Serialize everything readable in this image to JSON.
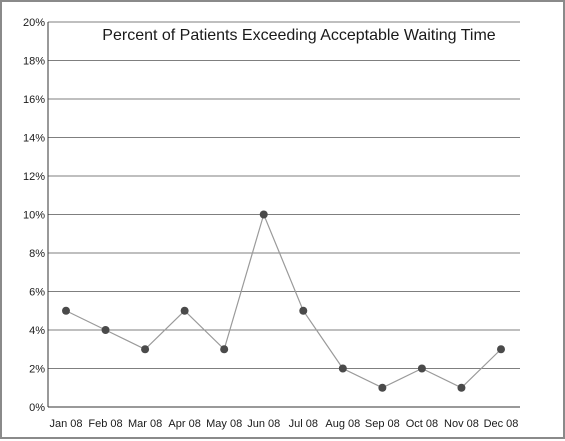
{
  "chart_data": {
    "type": "line",
    "title": "Percent of Patients Exceeding Acceptable Waiting Time",
    "xlabel": "",
    "ylabel": "",
    "categories": [
      "Jan 08",
      "Feb 08",
      "Mar 08",
      "Apr 08",
      "May 08",
      "Jun 08",
      "Jul 08",
      "Aug 08",
      "Sep 08",
      "Oct 08",
      "Nov 08",
      "Dec 08"
    ],
    "series": [
      {
        "values": [
          5,
          4,
          3,
          5,
          3,
          10,
          5,
          2,
          1,
          2,
          1,
          3
        ]
      }
    ],
    "ylim": [
      0,
      20
    ],
    "y_ticks": [
      {
        "value": 0,
        "label": "0%"
      },
      {
        "value": 2,
        "label": "2%"
      },
      {
        "value": 4,
        "label": "4%"
      },
      {
        "value": 6,
        "label": "6%"
      },
      {
        "value": 8,
        "label": "8%"
      },
      {
        "value": 10,
        "label": "10%"
      },
      {
        "value": 12,
        "label": "12%"
      },
      {
        "value": 14,
        "label": "14%"
      },
      {
        "value": 16,
        "label": "16%"
      },
      {
        "value": 18,
        "label": "18%"
      },
      {
        "value": 20,
        "label": "20%"
      }
    ],
    "grid": true,
    "legend": "none",
    "colors": {
      "line": "#9a9a9a",
      "marker": "#4a4a4a",
      "grid": "#555555",
      "axis": "#333333"
    }
  }
}
